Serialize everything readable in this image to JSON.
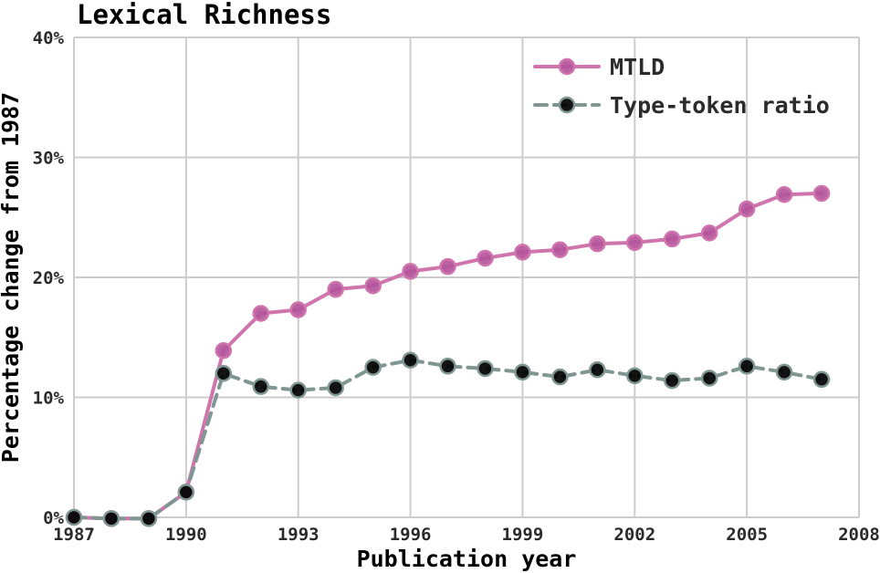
{
  "chart_data": {
    "type": "line",
    "title": "Lexical Richness",
    "xlabel": "Publication year",
    "ylabel": "Percentage change from 1987",
    "x": [
      1987,
      1988,
      1989,
      1990,
      1991,
      1992,
      1993,
      1994,
      1995,
      1996,
      1997,
      1998,
      1999,
      2000,
      2001,
      2002,
      2003,
      2004,
      2005,
      2006,
      2007
    ],
    "series": [
      {
        "name": "MTLD",
        "style": "solid",
        "line_color": "#cf74ac",
        "marker_color": "#b4559b",
        "values": [
          0.0,
          -0.1,
          -0.1,
          2.1,
          13.9,
          17.0,
          17.3,
          19.0,
          19.3,
          20.5,
          20.9,
          21.6,
          22.1,
          22.3,
          22.8,
          22.9,
          23.2,
          23.7,
          25.7,
          26.9,
          27.0
        ]
      },
      {
        "name": "Type-token ratio",
        "style": "dashed",
        "line_color": "#7f9693",
        "marker_color": "#506osing967",
        "values": [
          0.0,
          -0.1,
          -0.1,
          2.1,
          12.0,
          10.9,
          10.6,
          10.8,
          12.5,
          13.1,
          12.6,
          12.4,
          12.1,
          11.7,
          12.3,
          11.8,
          11.4,
          11.6,
          12.6,
          12.1,
          11.5
        ]
      }
    ],
    "xticks": [
      1987,
      1990,
      1993,
      1996,
      1999,
      2002,
      2005,
      2008
    ],
    "yticks": [
      0,
      10,
      20,
      30,
      40
    ],
    "ytick_suffix": "%",
    "xlim": [
      1987,
      2008
    ],
    "ylim": [
      0,
      40
    ],
    "grid": true,
    "legend_position": "upper right",
    "grid_color": "#cccccc",
    "text_color": "#2b2b2b",
    "background": "#ffffff"
  }
}
